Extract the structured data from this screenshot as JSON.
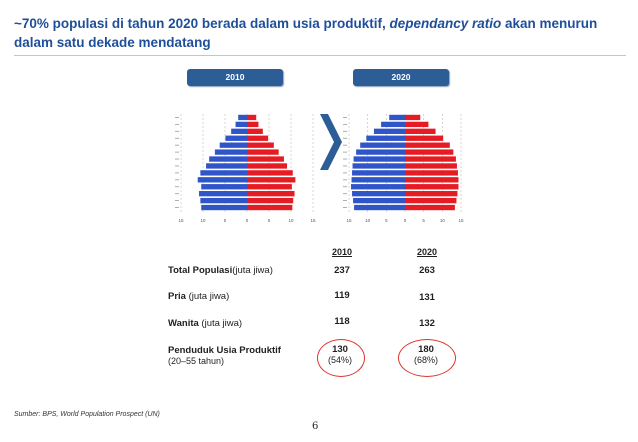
{
  "slide": {
    "title_part1": "~70% populasi di tahun 2020 berada dalam usia produktif, ",
    "title_italic": "dependancy ratio",
    "title_part2": " akan menurun dalam satu dekade mendatang",
    "source": "Sumber: BPS, World Population Prospect (UN)",
    "page_number": "6"
  },
  "pyramids": {
    "colors": {
      "male": "#2f55c9",
      "female": "#e51c23"
    },
    "axis_ticks": [
      "15",
      "10",
      "5",
      "0",
      "5",
      "10",
      "15"
    ],
    "charts": [
      {
        "year_label": "2010",
        "chart_data": {
          "type": "bar",
          "orientation": "horizontal-mirrored",
          "xlim": [
            -15,
            15
          ],
          "series": [
            {
              "values": [
                -10.4,
                -10.6,
                -10.9,
                -10.4,
                -11.2,
                -10.6,
                -9.3,
                -8.6,
                -7.3,
                -6.2,
                -4.9,
                -3.6,
                -2.6,
                -2.0
              ]
            },
            {
              "values": [
                10.3,
                10.5,
                10.8,
                10.2,
                11.0,
                10.4,
                9.1,
                8.4,
                7.2,
                6.1,
                4.8,
                3.6,
                2.6,
                2.1
              ]
            }
          ]
        }
      },
      {
        "year_label": "2020",
        "chart_data": {
          "type": "bar",
          "orientation": "horizontal-mirrored",
          "xlim": [
            -11,
            11
          ],
          "series": [
            {
              "values": [
                -10.0,
                -10.2,
                -10.4,
                -10.6,
                -10.5,
                -10.4,
                -10.3,
                -10.1,
                -9.6,
                -8.8,
                -7.6,
                -6.1,
                -4.7,
                -3.1
              ]
            },
            {
              "values": [
                9.8,
                10.1,
                10.3,
                10.5,
                10.5,
                10.4,
                10.2,
                10.0,
                9.5,
                8.8,
                7.5,
                6.0,
                4.6,
                3.0
              ]
            }
          ]
        }
      }
    ]
  },
  "table": {
    "columns": [
      "2010",
      "2020"
    ],
    "rows": [
      {
        "label_bold": "Total Populasi",
        "label_rest": "(juta jiwa)",
        "v2010": "237",
        "v2020": "263"
      },
      {
        "label_bold": "Pria",
        "label_rest": " (juta jiwa)",
        "v2010": "119",
        "v2020": "131"
      },
      {
        "label_bold": "Wanita",
        "label_rest": " (juta jiwa)",
        "v2010": "118",
        "v2020": "132"
      },
      {
        "label_bold": "Penduduk Usia Produktif",
        "label_rest": "(20–55 tahun)",
        "v2010": "130",
        "v2010_sub": "(54%)",
        "v2020": "180",
        "v2020_sub": "(68%)"
      }
    ]
  }
}
